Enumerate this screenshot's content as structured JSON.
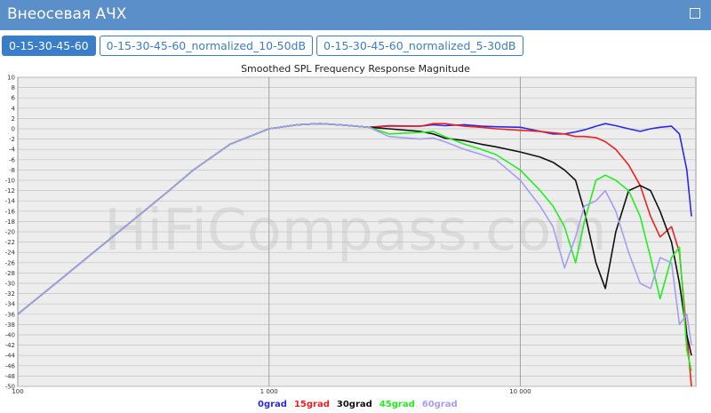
{
  "header": {
    "title": "Внеосевая АЧХ"
  },
  "tabs": [
    "0-15-30-45-60",
    "0-15-30-45-60_normalized_10-50dB",
    "0-15-30-45-60_normalized_5-30dB"
  ],
  "watermark": "HiFiCompass.com",
  "chart_data": {
    "type": "line",
    "title": "Smoothed SPL Frequency Response Magnitude",
    "log_x": true,
    "grid": true,
    "x": [
      100,
      150,
      200,
      300,
      400,
      500,
      700,
      1000,
      1300,
      1600,
      2000,
      2500,
      3000,
      4000,
      4500,
      5000,
      6000,
      7000,
      8000,
      10000,
      12000,
      13500,
      15000,
      16600,
      18000,
      20000,
      21800,
      24000,
      27000,
      30000,
      33000,
      36000,
      40000,
      43000,
      46000,
      48000
    ],
    "xlim": [
      100,
      50000
    ],
    "xticks": [
      {
        "value": 100,
        "label": "100"
      },
      {
        "value": 1000,
        "label": "1 000"
      },
      {
        "value": 10000,
        "label": "10 000"
      }
    ],
    "ylim": [
      -50,
      10
    ],
    "yticks": [
      10,
      8,
      6,
      4,
      2,
      0,
      -2,
      -4,
      -6,
      -8,
      -10,
      -12,
      -14,
      -16,
      -18,
      -20,
      -22,
      -24,
      -26,
      -28,
      -30,
      -32,
      -34,
      -36,
      -38,
      -40,
      -42,
      -44,
      -46,
      -48,
      -50
    ],
    "series": [
      {
        "name": "0grad",
        "color": "#2a2ae0",
        "values": [
          -36,
          -29,
          -24,
          -17,
          -12,
          -8,
          -3,
          0,
          0.8,
          1,
          0.7,
          0.3,
          0.6,
          0.5,
          0.8,
          0.6,
          0.8,
          0.5,
          0.4,
          0.3,
          -0.5,
          -1,
          -1,
          -0.6,
          -0.2,
          0.5,
          1,
          0.6,
          0,
          -0.5,
          0,
          0.3,
          0.5,
          -1,
          -8,
          -17
        ]
      },
      {
        "name": "15grad",
        "color": "#ee2020",
        "values": [
          -36,
          -29,
          -24,
          -17,
          -12,
          -8,
          -3,
          0,
          0.8,
          1,
          0.7,
          0.3,
          0.5,
          0.5,
          1,
          1,
          0.5,
          0.3,
          0,
          -0.3,
          -0.5,
          -0.8,
          -1,
          -1.5,
          -1.5,
          -1.7,
          -2.5,
          -4,
          -7,
          -11,
          -17,
          -21,
          -19,
          -24,
          -40,
          -50
        ]
      },
      {
        "name": "30grad",
        "color": "#111111",
        "values": [
          -36,
          -29,
          -24,
          -17,
          -12,
          -8,
          -3,
          0,
          0.8,
          1,
          0.7,
          0.3,
          0,
          -0.5,
          -1,
          -1.8,
          -2.3,
          -3,
          -3.5,
          -4.5,
          -5.5,
          -6.5,
          -8,
          -10,
          -16,
          -26,
          -31,
          -20,
          -12,
          -11,
          -12,
          -16,
          -22,
          -30,
          -40,
          -44
        ]
      },
      {
        "name": "45grad",
        "color": "#22ee22",
        "values": [
          -36,
          -29,
          -24,
          -17,
          -12,
          -8,
          -3,
          0,
          0.8,
          1,
          0.7,
          0.3,
          -1,
          -0.7,
          -0.5,
          -1.5,
          -3,
          -4,
          -5,
          -8,
          -12,
          -15,
          -19,
          -26,
          -18,
          -10,
          -9,
          -10,
          -12,
          -17,
          -25,
          -33,
          -25,
          -23,
          -43,
          -47
        ]
      },
      {
        "name": "60grad",
        "color": "#a59ef0",
        "values": [
          -36,
          -29,
          -24,
          -17,
          -12,
          -8,
          -3,
          0,
          0.8,
          1,
          0.7,
          0.3,
          -1.5,
          -2,
          -1.8,
          -2.5,
          -4,
          -5,
          -6,
          -10,
          -15,
          -19,
          -27,
          -21,
          -15,
          -14,
          -12,
          -16,
          -24,
          -30,
          -31,
          -25,
          -26,
          -38,
          -36,
          -42
        ]
      }
    ]
  }
}
